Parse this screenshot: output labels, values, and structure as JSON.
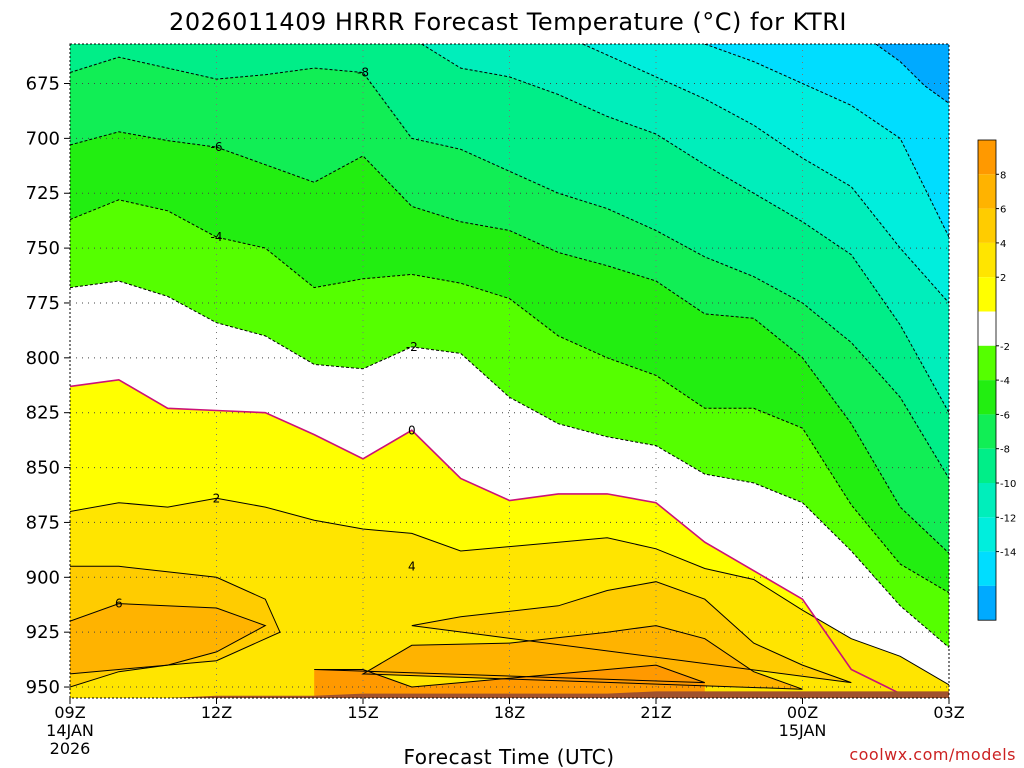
{
  "chart_data": {
    "type": "contour",
    "title": "2026011409 HRRR Forecast Temperature (°C) for KTRI",
    "xlabel": "Forecast Time (UTC)",
    "credit": "coolwx.com/models",
    "x_ticks": [
      {
        "hour": 0,
        "label": "09Z",
        "sub1": "14JAN",
        "sub2": "2026"
      },
      {
        "hour": 3,
        "label": "12Z",
        "sub1": "",
        "sub2": ""
      },
      {
        "hour": 6,
        "label": "15Z",
        "sub1": "",
        "sub2": ""
      },
      {
        "hour": 9,
        "label": "18Z",
        "sub1": "",
        "sub2": ""
      },
      {
        "hour": 12,
        "label": "21Z",
        "sub1": "",
        "sub2": ""
      },
      {
        "hour": 15,
        "label": "00Z",
        "sub1": "15JAN",
        "sub2": ""
      },
      {
        "hour": 18,
        "label": "03Z",
        "sub1": "",
        "sub2": ""
      }
    ],
    "y_ticks": [
      "675",
      "700",
      "725",
      "750",
      "775",
      "800",
      "825",
      "850",
      "875",
      "900",
      "925",
      "950"
    ],
    "y_values": [
      675,
      700,
      725,
      750,
      775,
      800,
      825,
      850,
      875,
      900,
      925,
      950
    ],
    "xlim": [
      0,
      18
    ],
    "ylim_hpa": [
      955,
      657
    ],
    "surface_pressure_hpa": [
      956,
      955,
      955,
      954,
      954,
      954,
      953,
      953,
      953,
      953,
      953,
      953,
      952,
      952,
      952,
      952,
      952,
      952,
      952
    ],
    "contour_levels": [
      8,
      6,
      4,
      2,
      0,
      -2,
      -4,
      -6,
      -8,
      -10,
      -12,
      -14
    ],
    "isotherms": [
      {
        "level": 6,
        "label": "6",
        "label_hour": 1,
        "points": [
          [
            0,
            920
          ],
          [
            1,
            912
          ],
          [
            3,
            914
          ],
          [
            4,
            922
          ],
          [
            3,
            934
          ],
          [
            2,
            940
          ],
          [
            1,
            942
          ],
          [
            0,
            944
          ]
        ]
      },
      {
        "level": 6,
        "label": "",
        "label_hour": 0,
        "points": [
          [
            6,
            944
          ],
          [
            7,
            931
          ],
          [
            9,
            930
          ],
          [
            11,
            925
          ],
          [
            12,
            922
          ],
          [
            13,
            928
          ],
          [
            14,
            943
          ],
          [
            15,
            951
          ]
        ]
      },
      {
        "level": 4,
        "label": "4",
        "label_hour": 7,
        "points": [
          [
            0,
            895
          ],
          [
            1,
            895
          ],
          [
            3,
            900
          ],
          [
            4,
            910
          ],
          [
            4.3,
            925
          ],
          [
            3,
            938
          ],
          [
            2,
            940
          ],
          [
            1,
            943
          ],
          [
            0,
            950
          ]
        ]
      },
      {
        "level": 4,
        "label": "",
        "label_hour": 0,
        "points": [
          [
            7,
            922
          ],
          [
            8,
            918
          ],
          [
            10,
            913
          ],
          [
            11,
            906
          ],
          [
            12,
            902
          ],
          [
            13,
            910
          ],
          [
            14,
            930
          ],
          [
            15,
            940
          ],
          [
            16,
            948
          ]
        ]
      },
      {
        "level": 4,
        "label": "",
        "label_hour": 0,
        "points": [
          [
            5,
            942
          ],
          [
            6,
            942
          ],
          [
            7,
            950
          ],
          [
            8,
            948
          ],
          [
            9,
            946
          ],
          [
            10,
            944
          ],
          [
            11,
            942
          ],
          [
            12,
            940
          ],
          [
            13,
            948
          ]
        ]
      },
      {
        "level": 2,
        "label": "2",
        "label_hour": 3,
        "points": [
          [
            0,
            870
          ],
          [
            1,
            866
          ],
          [
            2,
            868
          ],
          [
            3,
            864
          ],
          [
            4,
            868
          ],
          [
            5,
            874
          ],
          [
            6,
            878
          ],
          [
            7,
            880
          ],
          [
            8,
            888
          ],
          [
            9,
            886
          ],
          [
            10,
            884
          ],
          [
            11,
            882
          ],
          [
            12,
            887
          ],
          [
            13,
            896
          ],
          [
            14,
            901
          ],
          [
            15,
            915
          ],
          [
            16,
            928
          ],
          [
            17,
            936
          ],
          [
            18,
            949
          ]
        ]
      },
      {
        "level": 0,
        "label": "0",
        "label_hour": 7,
        "points": [
          [
            0,
            813
          ],
          [
            1,
            810
          ],
          [
            2,
            823
          ],
          [
            3,
            824
          ],
          [
            4,
            825
          ],
          [
            5,
            835
          ],
          [
            6,
            846
          ],
          [
            7,
            833
          ],
          [
            8,
            855
          ],
          [
            9,
            865
          ],
          [
            10,
            862
          ],
          [
            11,
            862
          ],
          [
            12,
            866
          ],
          [
            13,
            884
          ],
          [
            14,
            897
          ],
          [
            15,
            910
          ],
          [
            16,
            942
          ],
          [
            17,
            953
          ]
        ]
      },
      {
        "level": -2,
        "label": "-2",
        "label_hour": 7,
        "points": [
          [
            0,
            768
          ],
          [
            1,
            765
          ],
          [
            2,
            772
          ],
          [
            3,
            784
          ],
          [
            4,
            790
          ],
          [
            5,
            803
          ],
          [
            6,
            805
          ],
          [
            7,
            795
          ],
          [
            8,
            798
          ],
          [
            9,
            818
          ],
          [
            10,
            830
          ],
          [
            11,
            836
          ],
          [
            12,
            840
          ],
          [
            13,
            853
          ],
          [
            14,
            857
          ],
          [
            15,
            866
          ],
          [
            16,
            888
          ],
          [
            17,
            913
          ],
          [
            18,
            932
          ]
        ]
      },
      {
        "level": -4,
        "label": "-4",
        "label_hour": 3,
        "points": [
          [
            0,
            737
          ],
          [
            1,
            728
          ],
          [
            2,
            733
          ],
          [
            3,
            745
          ],
          [
            4,
            750
          ],
          [
            5,
            768
          ],
          [
            6,
            764
          ],
          [
            7,
            762
          ],
          [
            8,
            766
          ],
          [
            9,
            773
          ],
          [
            10,
            790
          ],
          [
            11,
            800
          ],
          [
            12,
            808
          ],
          [
            13,
            823
          ],
          [
            14,
            823
          ],
          [
            15,
            832
          ],
          [
            16,
            867
          ],
          [
            17,
            894
          ],
          [
            18,
            907
          ]
        ]
      },
      {
        "level": -6,
        "label": "-6",
        "label_hour": 3,
        "points": [
          [
            0,
            703
          ],
          [
            1,
            697
          ],
          [
            2,
            701
          ],
          [
            3,
            704
          ],
          [
            4,
            712
          ],
          [
            5,
            720
          ],
          [
            6,
            708
          ],
          [
            7,
            731
          ],
          [
            8,
            738
          ],
          [
            9,
            742
          ],
          [
            10,
            752
          ],
          [
            11,
            758
          ],
          [
            12,
            765
          ],
          [
            13,
            780
          ],
          [
            14,
            782
          ],
          [
            15,
            800
          ],
          [
            16,
            830
          ],
          [
            17,
            868
          ],
          [
            18,
            889
          ]
        ]
      },
      {
        "level": -8,
        "label": "-8",
        "label_hour": 6,
        "points": [
          [
            0,
            670
          ],
          [
            1,
            663
          ],
          [
            2,
            668
          ],
          [
            3,
            673
          ],
          [
            4,
            671
          ],
          [
            5,
            668
          ],
          [
            6,
            670
          ],
          [
            7,
            700
          ],
          [
            8,
            705
          ],
          [
            9,
            715
          ],
          [
            10,
            725
          ],
          [
            11,
            732
          ],
          [
            12,
            742
          ],
          [
            13,
            754
          ],
          [
            14,
            763
          ],
          [
            15,
            775
          ],
          [
            16,
            793
          ],
          [
            17,
            818
          ],
          [
            18,
            855
          ]
        ]
      },
      {
        "level": -10,
        "label": "",
        "label_hour": 0,
        "points": [
          [
            7.2,
            657
          ],
          [
            8,
            668
          ],
          [
            9,
            672
          ],
          [
            10,
            680
          ],
          [
            11,
            690
          ],
          [
            12,
            698
          ],
          [
            13,
            712
          ],
          [
            14,
            725
          ],
          [
            15,
            738
          ],
          [
            16,
            753
          ],
          [
            17,
            785
          ],
          [
            18,
            825
          ]
        ]
      },
      {
        "level": -12,
        "label": "",
        "label_hour": 0,
        "points": [
          [
            10.5,
            657
          ],
          [
            11,
            662
          ],
          [
            12,
            672
          ],
          [
            13,
            682
          ],
          [
            14,
            694
          ],
          [
            15,
            709
          ],
          [
            16,
            722
          ],
          [
            17,
            750
          ],
          [
            18,
            775
          ]
        ]
      },
      {
        "level": -14,
        "label": "",
        "label_hour": 0,
        "points": [
          [
            13,
            657
          ],
          [
            14,
            665
          ],
          [
            15,
            675
          ],
          [
            16,
            685
          ],
          [
            17,
            700
          ],
          [
            18,
            745
          ]
        ]
      },
      {
        "level": -16,
        "label": "",
        "label_hour": 0,
        "points": [
          [
            16.5,
            657
          ],
          [
            17,
            665
          ],
          [
            17.5,
            676
          ],
          [
            18,
            684
          ]
        ]
      }
    ],
    "colorbar": [
      {
        "range": "8 to 10",
        "label": "",
        "color": "#ff9900"
      },
      {
        "range": "6 to 8",
        "label": "8",
        "color": "#ffb300"
      },
      {
        "range": "4 to 6",
        "label": "6",
        "color": "#ffcc00"
      },
      {
        "range": "2 to 4",
        "label": "4",
        "color": "#ffe500"
      },
      {
        "range": "0 to 2",
        "label": "2",
        "color": "#ffff00"
      },
      {
        "range": "-2 to 0",
        "label": "",
        "color": "#ffffff"
      },
      {
        "range": "-4 to -2",
        "label": "-2",
        "color": "#55ff00"
      },
      {
        "range": "-6 to -4",
        "label": "-4",
        "color": "#22ee11"
      },
      {
        "range": "-8 to -6",
        "label": "-6",
        "color": "#11ee55"
      },
      {
        "range": "-10 to -8",
        "label": "-8",
        "color": "#00ee88"
      },
      {
        "range": "-12 to -10",
        "label": "-10",
        "color": "#00eebb"
      },
      {
        "range": "-14 to -12",
        "label": "-12",
        "color": "#00eedd"
      },
      {
        "range": "-16 to -14",
        "label": "-14",
        "color": "#00ddff"
      },
      {
        "range": "< -16",
        "label": "",
        "color": "#00aaff"
      }
    ],
    "surface_color": "#a0522d"
  }
}
